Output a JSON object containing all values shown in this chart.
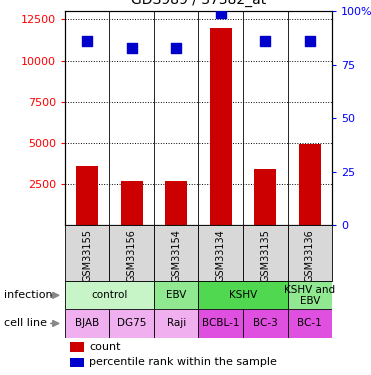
{
  "title": "GDS989 / 37382_at",
  "samples": [
    "GSM33155",
    "GSM33156",
    "GSM33154",
    "GSM33134",
    "GSM33135",
    "GSM33136"
  ],
  "counts": [
    3600,
    2700,
    2700,
    12000,
    3400,
    4900
  ],
  "percentiles": [
    86,
    83,
    83,
    99,
    86,
    86
  ],
  "infection_groups": [
    {
      "label": "control",
      "span": [
        0,
        2
      ],
      "color": "#c8f5c8"
    },
    {
      "label": "EBV",
      "span": [
        2,
        3
      ],
      "color": "#90e890"
    },
    {
      "label": "KSHV",
      "span": [
        3,
        5
      ],
      "color": "#50d850"
    },
    {
      "label": "KSHV and\nEBV",
      "span": [
        5,
        6
      ],
      "color": "#90e890"
    }
  ],
  "cell_line_groups": [
    {
      "label": "BJAB",
      "span": [
        0,
        1
      ],
      "color": "#f0b0f0"
    },
    {
      "label": "DG75",
      "span": [
        1,
        2
      ],
      "color": "#f0b0f0"
    },
    {
      "label": "Raji",
      "span": [
        2,
        3
      ],
      "color": "#f0b0f0"
    },
    {
      "label": "BCBL-1",
      "span": [
        3,
        4
      ],
      "color": "#e050e0"
    },
    {
      "label": "BC-3",
      "span": [
        4,
        5
      ],
      "color": "#e050e0"
    },
    {
      "label": "BC-1",
      "span": [
        5,
        6
      ],
      "color": "#e050e0"
    }
  ],
  "ylim_left": [
    0,
    13000
  ],
  "ylim_right": [
    0,
    100
  ],
  "yticks_left": [
    2500,
    5000,
    7500,
    10000,
    12500
  ],
  "yticks_right": [
    0,
    25,
    50,
    75,
    100
  ],
  "bar_color": "#cc0000",
  "dot_color": "#0000cc",
  "grid_color": "#000000",
  "bar_width": 0.5,
  "dot_size": 45,
  "sample_box_color": "#d8d8d8",
  "fig_width": 3.71,
  "fig_height": 3.75,
  "fig_dpi": 100
}
